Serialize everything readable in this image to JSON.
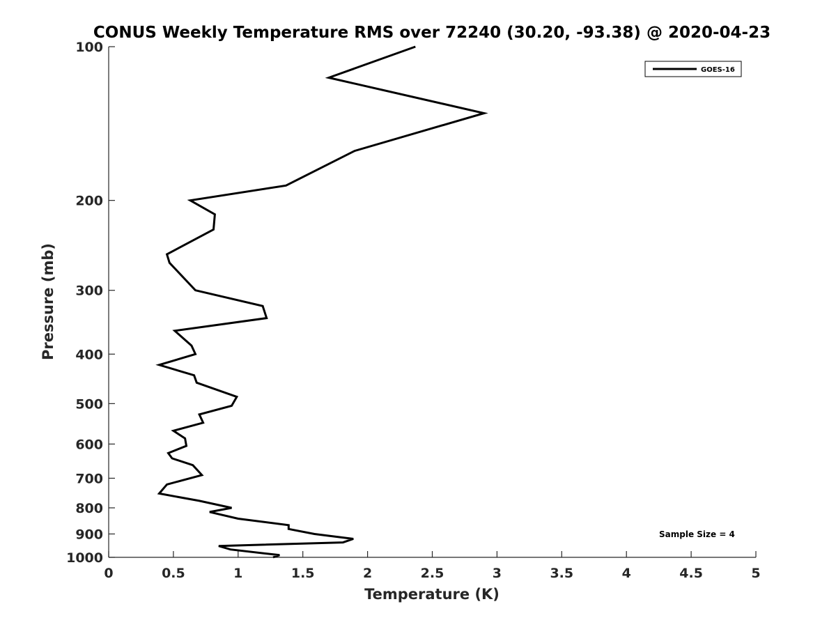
{
  "chart_data": {
    "type": "line",
    "title": "CONUS Weekly Temperature RMS over 72240 (30.20, -93.38) @ 2020-04-23",
    "xlabel": "Temperature (K)",
    "ylabel": "Pressure (mb)",
    "xlim": [
      0,
      5
    ],
    "ylim": [
      100,
      1000
    ],
    "yscale": "log",
    "yreversed": true,
    "xticks": [
      0,
      0.5,
      1,
      1.5,
      2,
      2.5,
      3,
      3.5,
      4,
      4.5,
      5
    ],
    "xtick_labels": [
      "0",
      "0.5",
      "1",
      "1.5",
      "2",
      "2.5",
      "3",
      "3.5",
      "4",
      "4.5",
      "5"
    ],
    "yticks": [
      100,
      200,
      300,
      400,
      500,
      600,
      700,
      800,
      900,
      1000
    ],
    "ytick_labels": [
      "100",
      "200",
      "300",
      "400",
      "500",
      "600",
      "700",
      "800",
      "900",
      "1000"
    ],
    "grid": false,
    "legend": {
      "position": "top-right"
    },
    "series": [
      {
        "name": "GOES-16",
        "color": "#000000",
        "x": [
          2.37,
          1.7,
          2.9,
          1.9,
          1.37,
          0.63,
          0.82,
          0.81,
          0.45,
          0.47,
          0.67,
          1.19,
          1.22,
          0.51,
          0.64,
          0.67,
          0.39,
          0.66,
          0.68,
          0.99,
          0.95,
          0.7,
          0.73,
          0.5,
          0.59,
          0.6,
          0.46,
          0.49,
          0.65,
          0.72,
          0.45,
          0.39,
          0.7,
          0.95,
          0.78,
          1.0,
          1.39,
          1.39,
          1.59,
          1.89,
          1.81,
          0.85,
          0.94,
          1.32,
          1.27
        ],
        "y": [
          100,
          115,
          135,
          160,
          187,
          200,
          213,
          228,
          255,
          265,
          300,
          322,
          340,
          360,
          385,
          400,
          420,
          440,
          455,
          485,
          505,
          525,
          545,
          565,
          585,
          605,
          625,
          640,
          660,
          690,
          720,
          750,
          775,
          800,
          815,
          840,
          865,
          880,
          900,
          920,
          935,
          950,
          965,
          990,
          1000
        ]
      }
    ],
    "annotations": [
      "Sample Size = 4"
    ]
  }
}
